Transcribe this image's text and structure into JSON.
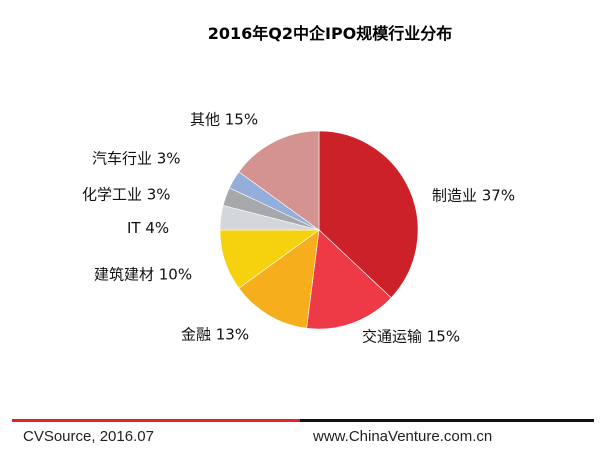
{
  "chart_data": {
    "type": "pie",
    "title": "2016年Q2中企IPO规模行业分布",
    "slices": [
      {
        "label": "制造业",
        "value": 37,
        "text": "制造业 37%",
        "color": "#cc2129"
      },
      {
        "label": "交通运输",
        "value": 15,
        "text": "交通运输 15%",
        "color": "#ee3a47"
      },
      {
        "label": "金融",
        "value": 13,
        "text": "金融 13%",
        "color": "#f6ae1c"
      },
      {
        "label": "建筑建材",
        "value": 10,
        "text": "建筑建材 10%",
        "color": "#f6d20e"
      },
      {
        "label": "IT",
        "value": 4,
        "text": "IT 4%",
        "color": "#d3d6da"
      },
      {
        "label": "化学工业",
        "value": 3,
        "text": "化学工业 3%",
        "color": "#a6a8ab"
      },
      {
        "label": "汽车行业",
        "value": 3,
        "text": "汽车行业 3%",
        "color": "#94aedb"
      },
      {
        "label": "其他",
        "value": 15,
        "text": "其他 15%",
        "color": "#d49391"
      }
    ],
    "start": "top",
    "direction": "clockwise"
  },
  "footer": {
    "source": "CVSource, 2016.07",
    "website": "www.ChinaVenture.com.cn"
  },
  "colors": {
    "rule_left": "#ee1c25",
    "rule_right": "#111111"
  }
}
